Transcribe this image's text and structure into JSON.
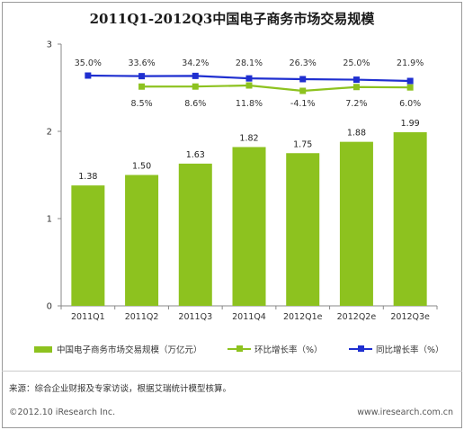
{
  "title": "2011Q1-2012Q3中国电子商务市场交易规模",
  "chart_data": {
    "type": "bar",
    "categories": [
      "2011Q1",
      "2011Q2",
      "2011Q3",
      "2011Q4",
      "2012Q1e",
      "2012Q2e",
      "2012Q3e"
    ],
    "ylim": [
      0,
      3
    ],
    "yticks": [
      "0",
      "1",
      "2",
      "3"
    ],
    "grid": false,
    "legend_position": "bottom",
    "series": [
      {
        "name": "中国电子商务市场交易规模（万亿元）",
        "kind": "bar",
        "color": "#8dc21f",
        "values": [
          1.38,
          1.5,
          1.63,
          1.82,
          1.75,
          1.88,
          1.99
        ],
        "labels": [
          "1.38",
          "1.50",
          "1.63",
          "1.82",
          "1.75",
          "1.88",
          "1.99"
        ]
      },
      {
        "name": "环比增长率（%）",
        "kind": "line",
        "color": "#8dc21f",
        "values": [
          null,
          8.5,
          8.6,
          11.8,
          -4.1,
          7.2,
          6.0
        ],
        "labels": [
          "",
          "8.5%",
          "8.6%",
          "11.8%",
          "-4.1%",
          "7.2%",
          "6.0%"
        ]
      },
      {
        "name": "同比增长率（%）",
        "kind": "line",
        "color": "#1f2fd0",
        "values": [
          35.0,
          33.6,
          34.2,
          28.1,
          26.3,
          25.0,
          21.9
        ],
        "labels": [
          "35.0%",
          "33.6%",
          "34.2%",
          "28.1%",
          "26.3%",
          "25.0%",
          "21.9%"
        ]
      }
    ]
  },
  "footer": {
    "source": "来源：综合企业财报及专家访谈，根据艾瑞统计模型核算。",
    "copyright": "©2012.10 iResearch Inc.",
    "website": "www.iresearch.com.cn"
  },
  "colors": {
    "bar": "#8dc21f",
    "qoq_line": "#8dc21f",
    "yoy_line": "#1f2fd0",
    "axis": "#888888"
  }
}
